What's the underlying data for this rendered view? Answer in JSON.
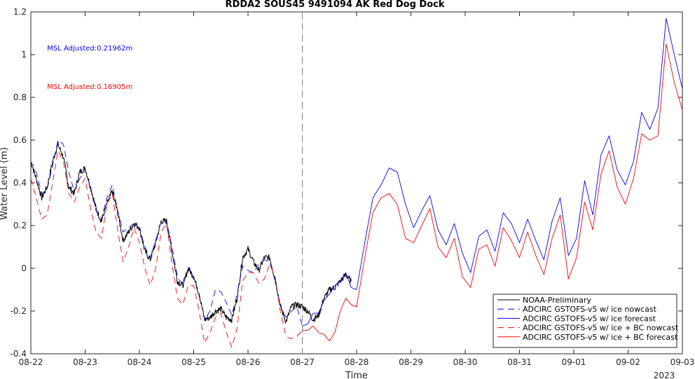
{
  "chart_data": {
    "type": "line",
    "title": "RDDA2 SOUS45 9491094 AK Red Dog Dock",
    "xlabel": "Time",
    "ylabel": "Water Level (m)",
    "year_label": "2023",
    "xlim": [
      0,
      12
    ],
    "ylim": [
      -0.4,
      1.2
    ],
    "x_ticks": [
      {
        "x": 0,
        "label": "08-22"
      },
      {
        "x": 1,
        "label": "08-23"
      },
      {
        "x": 2,
        "label": "08-24"
      },
      {
        "x": 3,
        "label": "08-25"
      },
      {
        "x": 4,
        "label": "08-26"
      },
      {
        "x": 5,
        "label": "08-27"
      },
      {
        "x": 6,
        "label": "08-28"
      },
      {
        "x": 7,
        "label": "08-29"
      },
      {
        "x": 8,
        "label": "08-30"
      },
      {
        "x": 9,
        "label": "08-31"
      },
      {
        "x": 10,
        "label": "09-01"
      },
      {
        "x": 11,
        "label": "09-02"
      },
      {
        "x": 12,
        "label": "09-03"
      }
    ],
    "y_ticks": [
      {
        "y": -0.4,
        "label": "-0.4"
      },
      {
        "y": -0.2,
        "label": "-0.2"
      },
      {
        "y": 0,
        "label": "0"
      },
      {
        "y": 0.2,
        "label": "0.2"
      },
      {
        "y": 0.4,
        "label": "0.4"
      },
      {
        "y": 0.6,
        "label": "0.6"
      },
      {
        "y": 0.8,
        "label": "0.8"
      },
      {
        "y": 1,
        "label": "1"
      },
      {
        "y": 1.2,
        "label": "1.2"
      }
    ],
    "nowcast_forecast_split_x": 5,
    "annotations": [
      {
        "text": "MSL Adjusted:0.21962m",
        "color": "#0000ff",
        "x": 0.3,
        "y": 1.02
      },
      {
        "text": "MSL Adjusted:0.16905m",
        "color": "#ff0000",
        "x": 0.3,
        "y": 0.84
      }
    ],
    "legend_position": "bottom-right",
    "series": [
      {
        "name": "NOAA-Preliminary",
        "color": "#000000",
        "style": "solid",
        "noisy": true,
        "x": [
          0,
          0.1,
          0.2,
          0.3,
          0.4,
          0.5,
          0.6,
          0.7,
          0.8,
          0.9,
          1.0,
          1.1,
          1.2,
          1.3,
          1.4,
          1.5,
          1.6,
          1.7,
          1.8,
          1.9,
          2.0,
          2.1,
          2.2,
          2.3,
          2.4,
          2.5,
          2.6,
          2.7,
          2.8,
          2.9,
          3.0,
          3.1,
          3.2,
          3.3,
          3.4,
          3.5,
          3.6,
          3.7,
          3.8,
          3.9,
          4.0,
          4.1,
          4.2,
          4.3,
          4.4,
          4.5,
          4.6,
          4.7,
          4.8,
          4.9,
          5.0,
          5.1,
          5.2,
          5.3,
          5.4,
          5.5,
          5.6,
          5.7,
          5.8,
          5.9
        ],
        "y": [
          0.5,
          0.42,
          0.33,
          0.38,
          0.5,
          0.58,
          0.52,
          0.38,
          0.35,
          0.45,
          0.47,
          0.38,
          0.28,
          0.22,
          0.3,
          0.36,
          0.26,
          0.13,
          0.17,
          0.21,
          0.19,
          0.08,
          0.04,
          0.12,
          0.22,
          0.22,
          0.08,
          -0.06,
          -0.08,
          0.0,
          -0.04,
          -0.12,
          -0.24,
          -0.23,
          -0.2,
          -0.19,
          -0.23,
          -0.24,
          -0.14,
          0.05,
          0.09,
          0.03,
          -0.01,
          0.05,
          0.05,
          -0.05,
          -0.18,
          -0.25,
          -0.18,
          -0.17,
          -0.18,
          -0.2,
          -0.24,
          -0.22,
          -0.14,
          -0.1,
          -0.09,
          -0.06,
          -0.03,
          -0.06
        ]
      },
      {
        "name": "ADCIRC GSTOFS-v5 w/ ice nowcast",
        "color": "#0000ff",
        "style": "dashed",
        "x": [
          0,
          0.1,
          0.2,
          0.3,
          0.4,
          0.5,
          0.6,
          0.7,
          0.8,
          0.9,
          1.0,
          1.1,
          1.2,
          1.3,
          1.4,
          1.5,
          1.6,
          1.7,
          1.8,
          1.9,
          2.0,
          2.1,
          2.2,
          2.3,
          2.4,
          2.5,
          2.6,
          2.7,
          2.8,
          2.9,
          3.0,
          3.1,
          3.2,
          3.3,
          3.4,
          3.5,
          3.6,
          3.7,
          3.8,
          3.9,
          4.0,
          4.1,
          4.2,
          4.3,
          4.4,
          4.5,
          4.6,
          4.7,
          4.8,
          4.9,
          5.0
        ],
        "y": [
          0.5,
          0.45,
          0.35,
          0.37,
          0.48,
          0.6,
          0.58,
          0.45,
          0.36,
          0.42,
          0.46,
          0.38,
          0.27,
          0.23,
          0.33,
          0.39,
          0.27,
          0.17,
          0.19,
          0.21,
          0.19,
          0.1,
          0.05,
          0.13,
          0.22,
          0.22,
          0.1,
          -0.04,
          -0.08,
          0.0,
          -0.04,
          -0.12,
          -0.24,
          -0.2,
          -0.1,
          -0.11,
          -0.16,
          -0.22,
          -0.12,
          0.01,
          -0.01,
          -0.02,
          0.02,
          0.04,
          0.03,
          -0.06,
          -0.18,
          -0.23,
          -0.2,
          -0.18,
          -0.27
        ]
      },
      {
        "name": "ADCIRC GSTOFS-v5 w/ ice forecast",
        "color": "#0000ff",
        "style": "solid",
        "x": [
          5.0,
          5.1,
          5.2,
          5.3,
          5.4,
          5.5,
          5.6,
          5.7,
          5.8,
          5.9,
          6.0,
          6.15,
          6.3,
          6.45,
          6.6,
          6.75,
          6.9,
          7.05,
          7.2,
          7.35,
          7.5,
          7.65,
          7.8,
          7.95,
          8.1,
          8.25,
          8.4,
          8.55,
          8.7,
          8.85,
          9.0,
          9.15,
          9.3,
          9.45,
          9.6,
          9.75,
          9.9,
          10.05,
          10.2,
          10.35,
          10.5,
          10.65,
          10.8,
          10.95,
          11.1,
          11.25,
          11.4,
          11.55,
          11.7,
          11.85,
          12.0
        ],
        "y": [
          -0.27,
          -0.26,
          -0.21,
          -0.21,
          -0.15,
          -0.12,
          -0.08,
          -0.06,
          -0.02,
          -0.09,
          -0.1,
          0.12,
          0.33,
          0.39,
          0.47,
          0.45,
          0.3,
          0.19,
          0.27,
          0.34,
          0.18,
          0.11,
          0.21,
          0.07,
          -0.02,
          0.15,
          0.18,
          0.08,
          0.26,
          0.21,
          0.12,
          0.23,
          0.13,
          0.04,
          0.22,
          0.33,
          0.06,
          0.14,
          0.41,
          0.25,
          0.53,
          0.62,
          0.46,
          0.39,
          0.5,
          0.73,
          0.65,
          0.75,
          1.17,
          1.0,
          0.84
        ]
      },
      {
        "name": "ADCIRC GSTOFS-v5 w/ ice + BC nowcast",
        "color": "#ff0000",
        "style": "dashed",
        "x": [
          0,
          0.1,
          0.2,
          0.3,
          0.4,
          0.5,
          0.6,
          0.7,
          0.8,
          0.9,
          1.0,
          1.1,
          1.2,
          1.3,
          1.4,
          1.5,
          1.6,
          1.7,
          1.8,
          1.9,
          2.0,
          2.1,
          2.2,
          2.3,
          2.4,
          2.5,
          2.6,
          2.7,
          2.8,
          2.9,
          3.0,
          3.1,
          3.2,
          3.3,
          3.4,
          3.5,
          3.6,
          3.7,
          3.8,
          3.9,
          4.0,
          4.1,
          4.2,
          4.3,
          4.4,
          4.5,
          4.6,
          4.7,
          4.8,
          4.9,
          5.0
        ],
        "y": [
          0.42,
          0.33,
          0.23,
          0.25,
          0.4,
          0.55,
          0.5,
          0.35,
          0.31,
          0.38,
          0.42,
          0.28,
          0.17,
          0.14,
          0.3,
          0.35,
          0.18,
          0.03,
          0.1,
          0.19,
          0.12,
          0.0,
          -0.08,
          0.0,
          0.17,
          0.21,
          0.02,
          -0.14,
          -0.17,
          -0.08,
          -0.08,
          -0.2,
          -0.35,
          -0.3,
          -0.23,
          -0.21,
          -0.3,
          -0.37,
          -0.28,
          -0.06,
          -0.02,
          -0.02,
          -0.07,
          -0.05,
          0.02,
          -0.04,
          -0.21,
          -0.32,
          -0.33,
          -0.32,
          -0.29
        ]
      },
      {
        "name": "ADCIRC GSTOFS-v5 w/ ice + BC forecast",
        "color": "#ff0000",
        "style": "solid",
        "x": [
          5.0,
          5.1,
          5.2,
          5.3,
          5.4,
          5.5,
          5.6,
          5.7,
          5.8,
          5.9,
          6.0,
          6.15,
          6.3,
          6.45,
          6.6,
          6.75,
          6.9,
          7.05,
          7.2,
          7.35,
          7.5,
          7.65,
          7.8,
          7.95,
          8.1,
          8.25,
          8.4,
          8.55,
          8.7,
          8.85,
          9.0,
          9.15,
          9.3,
          9.45,
          9.6,
          9.75,
          9.9,
          10.05,
          10.2,
          10.35,
          10.5,
          10.65,
          10.8,
          10.95,
          11.1,
          11.25,
          11.4,
          11.55,
          11.7,
          11.85,
          12.0
        ],
        "y": [
          -0.29,
          -0.29,
          -0.27,
          -0.3,
          -0.31,
          -0.34,
          -0.3,
          -0.2,
          -0.14,
          -0.17,
          -0.18,
          0.05,
          0.26,
          0.33,
          0.35,
          0.3,
          0.14,
          0.12,
          0.2,
          0.28,
          0.1,
          0.05,
          0.14,
          -0.04,
          -0.09,
          0.09,
          0.11,
          0.01,
          0.19,
          0.13,
          0.05,
          0.17,
          0.06,
          -0.03,
          0.14,
          0.25,
          -0.05,
          0.05,
          0.31,
          0.18,
          0.44,
          0.55,
          0.38,
          0.3,
          0.42,
          0.63,
          0.6,
          0.62,
          1.05,
          0.87,
          0.74
        ]
      }
    ]
  }
}
